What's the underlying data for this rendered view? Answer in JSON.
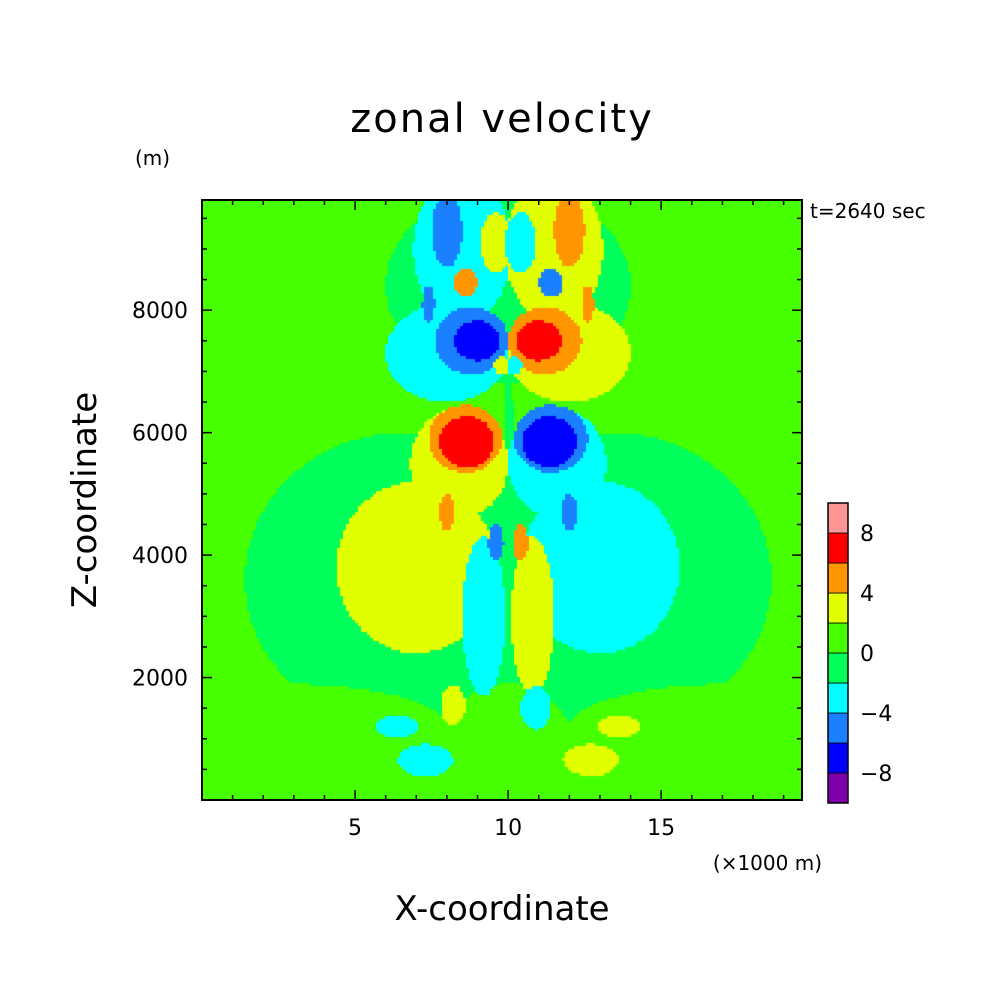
{
  "chart_data": {
    "type": "heatmap",
    "title": "zonal velocity",
    "xlabel": "X-coordinate",
    "ylabel": "Z-coordinate",
    "x_unit": "(×1000 m)",
    "y_unit": "(m)",
    "time_label": "t=2640 sec",
    "xlim": [
      0,
      19.6
    ],
    "ylim": [
      0,
      9800
    ],
    "x_ticks": [
      5,
      10,
      15
    ],
    "y_ticks": [
      2000,
      4000,
      6000,
      8000
    ],
    "x_tick_labels": [
      "5",
      "10",
      "15"
    ],
    "y_tick_labels": [
      "2000",
      "4000",
      "6000",
      "8000"
    ],
    "colorbar": {
      "levels": [
        -10,
        -8,
        -6,
        -4,
        -2,
        0,
        2,
        4,
        6,
        8,
        10
      ],
      "colors": [
        "#7f00aa",
        "#0000ff",
        "#1a80ff",
        "#00ffff",
        "#00ff5a",
        "#46ff00",
        "#e1ff00",
        "#ff9600",
        "#ff0000",
        "#ff9696"
      ],
      "tick_labels": [
        "−8",
        "−4",
        "0",
        "4",
        "8"
      ],
      "tick_values": [
        -8,
        -4,
        0,
        4,
        8
      ]
    },
    "background_value": 1,
    "features": [
      {
        "kind": "blob",
        "x": 10.0,
        "z": 5000,
        "rx": 0.15,
        "rz": 5000,
        "value": -1
      },
      {
        "kind": "blob",
        "x": 6.6,
        "z": 3600,
        "rx": 5.2,
        "rz": 2400,
        "value": -1
      },
      {
        "kind": "blob",
        "x": 13.4,
        "z": 3600,
        "rx": 5.2,
        "rz": 2400,
        "value": -1
      },
      {
        "kind": "blob",
        "x": 10.0,
        "z": 8400,
        "rx": 4.0,
        "rz": 1600,
        "value": -1
      },
      {
        "kind": "blob",
        "x": 2.5,
        "z": 1200,
        "rx": 5.5,
        "rz": 700,
        "value": 1
      },
      {
        "kind": "blob",
        "x": 17.5,
        "z": 1200,
        "rx": 5.5,
        "rz": 700,
        "value": 1
      },
      {
        "kind": "blob",
        "x": 10.0,
        "z": 1000,
        "rx": 2.0,
        "rz": 900,
        "value": 1
      },
      {
        "kind": "blob",
        "x": 7.0,
        "z": 3800,
        "rx": 2.6,
        "rz": 1400,
        "value": 3
      },
      {
        "kind": "blob",
        "x": 13.0,
        "z": 3800,
        "rx": 2.6,
        "rz": 1400,
        "value": -3
      },
      {
        "kind": "blob",
        "x": 8.4,
        "z": 5500,
        "rx": 1.6,
        "rz": 900,
        "value": 3
      },
      {
        "kind": "blob",
        "x": 11.6,
        "z": 5500,
        "rx": 1.6,
        "rz": 900,
        "value": -3
      },
      {
        "kind": "blob",
        "x": 8.6,
        "z": 5900,
        "rx": 1.2,
        "rz": 550,
        "value": 5
      },
      {
        "kind": "blob",
        "x": 11.4,
        "z": 5900,
        "rx": 1.2,
        "rz": 550,
        "value": -5
      },
      {
        "kind": "blob",
        "x": 8.65,
        "z": 5850,
        "rx": 0.9,
        "rz": 420,
        "value": 7
      },
      {
        "kind": "blob",
        "x": 11.35,
        "z": 5850,
        "rx": 0.9,
        "rz": 420,
        "value": -7
      },
      {
        "kind": "blob",
        "x": 8.0,
        "z": 4700,
        "rx": 0.25,
        "rz": 300,
        "value": 5
      },
      {
        "kind": "blob",
        "x": 12.0,
        "z": 4700,
        "rx": 0.25,
        "rz": 300,
        "value": -5
      },
      {
        "kind": "blob",
        "x": 8.0,
        "z": 7300,
        "rx": 2.0,
        "rz": 800,
        "value": -3
      },
      {
        "kind": "blob",
        "x": 12.0,
        "z": 7300,
        "rx": 2.0,
        "rz": 800,
        "value": 3
      },
      {
        "kind": "blob",
        "x": 8.8,
        "z": 7500,
        "rx": 1.2,
        "rz": 550,
        "value": -5
      },
      {
        "kind": "blob",
        "x": 11.2,
        "z": 7500,
        "rx": 1.2,
        "rz": 550,
        "value": 5
      },
      {
        "kind": "blob",
        "x": 9.0,
        "z": 7500,
        "rx": 0.75,
        "rz": 330,
        "value": -7
      },
      {
        "kind": "blob",
        "x": 11.0,
        "z": 7500,
        "rx": 0.75,
        "rz": 330,
        "value": 7
      },
      {
        "kind": "blob",
        "x": 7.4,
        "z": 8100,
        "rx": 0.2,
        "rz": 300,
        "value": -5
      },
      {
        "kind": "blob",
        "x": 12.6,
        "z": 8100,
        "rx": 0.2,
        "rz": 300,
        "value": 5
      },
      {
        "kind": "blob",
        "x": 8.5,
        "z": 9000,
        "rx": 1.6,
        "rz": 1200,
        "value": -3
      },
      {
        "kind": "blob",
        "x": 11.5,
        "z": 9000,
        "rx": 1.6,
        "rz": 1200,
        "value": 3
      },
      {
        "kind": "blob",
        "x": 8.0,
        "z": 9300,
        "rx": 0.5,
        "rz": 600,
        "value": -5
      },
      {
        "kind": "blob",
        "x": 12.0,
        "z": 9300,
        "rx": 0.5,
        "rz": 600,
        "value": 5
      },
      {
        "kind": "blob",
        "x": 9.6,
        "z": 9100,
        "rx": 0.5,
        "rz": 500,
        "value": 3
      },
      {
        "kind": "blob",
        "x": 10.4,
        "z": 9100,
        "rx": 0.5,
        "rz": 500,
        "value": -3
      },
      {
        "kind": "blob",
        "x": 8.6,
        "z": 8450,
        "rx": 0.4,
        "rz": 230,
        "value": 5
      },
      {
        "kind": "blob",
        "x": 11.4,
        "z": 8450,
        "rx": 0.4,
        "rz": 230,
        "value": -5
      },
      {
        "kind": "blob",
        "x": 9.8,
        "z": 7100,
        "rx": 0.25,
        "rz": 150,
        "value": 3
      },
      {
        "kind": "blob",
        "x": 10.2,
        "z": 7100,
        "rx": 0.25,
        "rz": 150,
        "value": -3
      },
      {
        "kind": "blob",
        "x": 9.2,
        "z": 3000,
        "rx": 0.7,
        "rz": 1300,
        "value": -3
      },
      {
        "kind": "blob",
        "x": 10.8,
        "z": 3000,
        "rx": 0.7,
        "rz": 1300,
        "value": 3
      },
      {
        "kind": "blob",
        "x": 9.6,
        "z": 4200,
        "rx": 0.25,
        "rz": 300,
        "value": -5
      },
      {
        "kind": "blob",
        "x": 10.4,
        "z": 4200,
        "rx": 0.25,
        "rz": 300,
        "value": 5
      },
      {
        "kind": "blob",
        "x": 8.2,
        "z": 1550,
        "rx": 0.4,
        "rz": 330,
        "value": 3
      },
      {
        "kind": "blob",
        "x": 10.9,
        "z": 1500,
        "rx": 0.5,
        "rz": 350,
        "value": -3
      },
      {
        "kind": "blob",
        "x": 6.4,
        "z": 1200,
        "rx": 0.7,
        "rz": 180,
        "value": -3
      },
      {
        "kind": "blob",
        "x": 13.6,
        "z": 1200,
        "rx": 0.7,
        "rz": 180,
        "value": 3
      },
      {
        "kind": "blob",
        "x": 7.3,
        "z": 650,
        "rx": 0.9,
        "rz": 260,
        "value": -3
      },
      {
        "kind": "blob",
        "x": 12.7,
        "z": 650,
        "rx": 0.9,
        "rz": 260,
        "value": 3
      }
    ]
  }
}
